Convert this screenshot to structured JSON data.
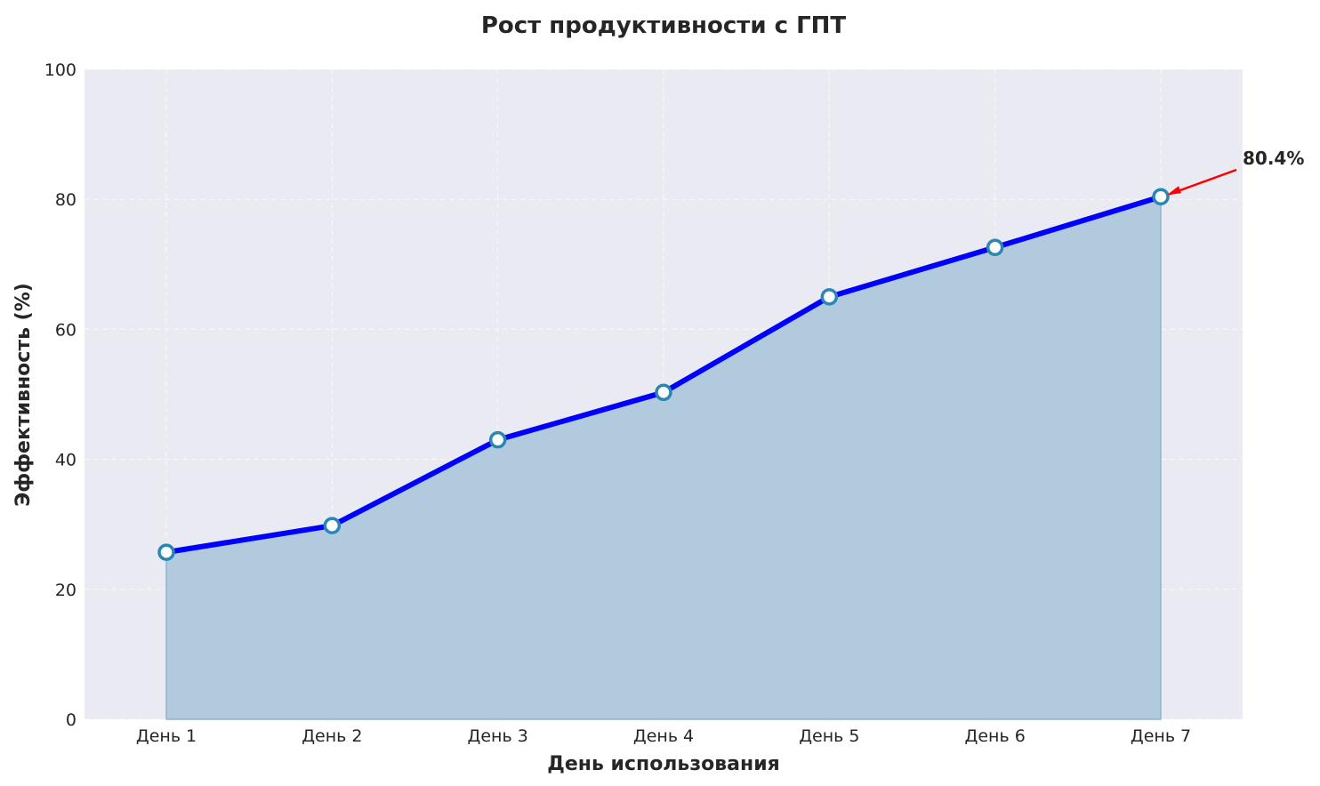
{
  "chart_data": {
    "type": "area",
    "title": "Рост продуктивности с ГПТ",
    "xlabel": "День использования",
    "ylabel": "Эффективность (%)",
    "categories": [
      "День 1",
      "День 2",
      "День 3",
      "День 4",
      "День 5",
      "День 6",
      "День 7"
    ],
    "values": [
      25.7,
      29.8,
      43.0,
      50.3,
      65.0,
      72.6,
      80.4
    ],
    "ylim": [
      0,
      100
    ],
    "yticks": [
      "0",
      "20",
      "40",
      "60",
      "80",
      "100"
    ],
    "grid": true,
    "annotation": {
      "text": "80.4%",
      "category": "День 7",
      "value": 80.4,
      "arrow_color": "#ff0000"
    },
    "colors": {
      "line": "#0000ff",
      "fill": "#a7c4d9",
      "marker_edge": "#2a86b3",
      "marker_face": "#ffffff",
      "background": "#eaeaf2"
    }
  }
}
